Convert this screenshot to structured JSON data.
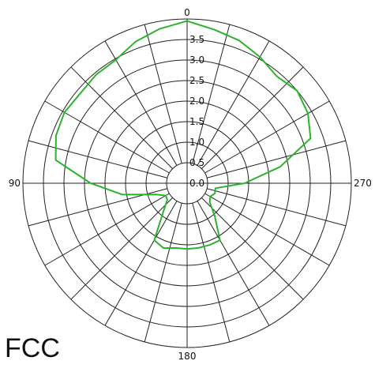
{
  "caption": "FCC",
  "chart_data": {
    "type": "polar",
    "caption": "FCC",
    "angle_direction": "counterclockwise",
    "zero_at": "top",
    "angle_labels": [
      "0",
      "90",
      "180",
      "270"
    ],
    "radial_range": [
      0,
      4
    ],
    "radial_ticks": [
      "0.0",
      "0.5",
      "1.0",
      "1.5",
      "2.0",
      "2.5",
      "3.0",
      "3.5"
    ],
    "spoke_step_deg": 15,
    "line_color": "#2bb32b",
    "grid_color": "#222222",
    "series": [
      {
        "angles": [
          0,
          10,
          20,
          30,
          40,
          50,
          60,
          70,
          80,
          90,
          100,
          110,
          120,
          130,
          140,
          150,
          160,
          170,
          180,
          190,
          200,
          210,
          220,
          230,
          240,
          250,
          260,
          270,
          280,
          290,
          300,
          310,
          320,
          330,
          340,
          350,
          360
        ],
        "values": [
          3.95,
          3.82,
          3.67,
          3.47,
          3.45,
          3.4,
          3.45,
          3.4,
          3.25,
          2.35,
          1.6,
          0.8,
          0.6,
          0.63,
          0.9,
          1.6,
          1.68,
          1.6,
          1.6,
          1.6,
          1.6,
          1.6,
          1.05,
          0.72,
          0.65,
          0.72,
          0.7,
          1.4,
          2.3,
          3.2,
          3.4,
          3.5,
          3.4,
          3.55,
          3.7,
          3.8,
          3.95
        ]
      }
    ]
  }
}
